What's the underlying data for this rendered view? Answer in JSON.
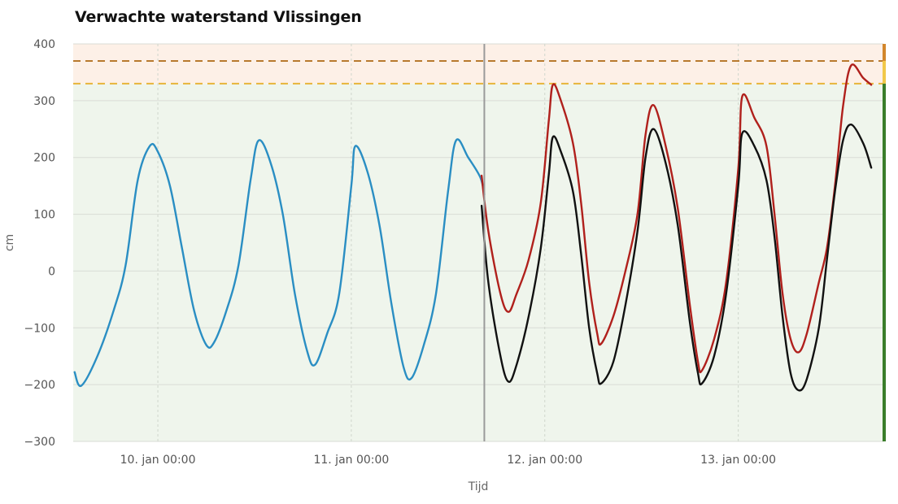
{
  "chart_data": {
    "type": "line",
    "title": "Verwachte waterstand Vlissingen",
    "xlabel": "Tijd",
    "ylabel": "cm",
    "ylim": [
      -300,
      400
    ],
    "yticks": [
      400,
      300,
      200,
      100,
      0,
      -100,
      -200,
      -300
    ],
    "xlim": [
      "2022-01-09 13:30",
      "2022-01-13 18:00"
    ],
    "xticks": [
      {
        "t": "2022-01-10 00:00",
        "label": "10. jan 00:00"
      },
      {
        "t": "2022-01-11 00:00",
        "label": "11. jan 00:00"
      },
      {
        "t": "2022-01-12 00:00",
        "label": "12. jan 00:00"
      },
      {
        "t": "2022-01-13 00:00",
        "label": "13. jan 00:00"
      }
    ],
    "now": "2022-01-11 16:30",
    "grid": true,
    "legend": "none",
    "bands": [
      {
        "from": 330,
        "to": 400,
        "color": "#fdf0e7"
      },
      {
        "from": -300,
        "to": 330,
        "color": "#eff5ec"
      }
    ],
    "threshold_lines": [
      {
        "value": 370,
        "color": "#b87a2e"
      },
      {
        "value": 330,
        "color": "#e8b53a"
      }
    ],
    "right_status_bar": [
      {
        "from": 370,
        "to": 400,
        "color": "#d2862b"
      },
      {
        "from": 330,
        "to": 370,
        "color": "#f1c84a"
      },
      {
        "from": -300,
        "to": 330,
        "color": "#3a7d2a"
      }
    ],
    "series": [
      {
        "color": "#2a8ec3",
        "points": [
          [
            "2022-01-09 13:40",
            -178
          ],
          [
            "2022-01-09 14:30",
            -202
          ],
          [
            "2022-01-09 16:30",
            -150
          ],
          [
            "2022-01-09 18:30",
            -70
          ],
          [
            "2022-01-09 20:00",
            10
          ],
          [
            "2022-01-09 21:30",
            160
          ],
          [
            "2022-01-09 23:00",
            220
          ],
          [
            "2022-01-10 00:00",
            210
          ],
          [
            "2022-01-10 01:30",
            150
          ],
          [
            "2022-01-10 03:00",
            40
          ],
          [
            "2022-01-10 04:30",
            -70
          ],
          [
            "2022-01-10 06:00",
            -130
          ],
          [
            "2022-01-10 07:00",
            -125
          ],
          [
            "2022-01-10 08:30",
            -70
          ],
          [
            "2022-01-10 10:00",
            10
          ],
          [
            "2022-01-10 11:30",
            160
          ],
          [
            "2022-01-10 12:30",
            230
          ],
          [
            "2022-01-10 14:00",
            190
          ],
          [
            "2022-01-10 15:30",
            100
          ],
          [
            "2022-01-10 17:00",
            -40
          ],
          [
            "2022-01-10 18:30",
            -140
          ],
          [
            "2022-01-10 19:30",
            -165
          ],
          [
            "2022-01-10 21:00",
            -110
          ],
          [
            "2022-01-10 22:30",
            -40
          ],
          [
            "2022-01-11 00:00",
            150
          ],
          [
            "2022-01-11 00:30",
            220
          ],
          [
            "2022-01-11 02:00",
            175
          ],
          [
            "2022-01-11 03:30",
            80
          ],
          [
            "2022-01-11 05:00",
            -60
          ],
          [
            "2022-01-11 06:30",
            -170
          ],
          [
            "2022-01-11 07:30",
            -188
          ],
          [
            "2022-01-11 09:00",
            -130
          ],
          [
            "2022-01-11 10:30",
            -40
          ],
          [
            "2022-01-11 12:00",
            140
          ],
          [
            "2022-01-11 13:00",
            230
          ],
          [
            "2022-01-11 14:30",
            200
          ],
          [
            "2022-01-11 16:00",
            165
          ],
          [
            "2022-01-11 16:30",
            135
          ]
        ]
      },
      {
        "color": "#b0201c",
        "points": [
          [
            "2022-01-11 16:10",
            168
          ],
          [
            "2022-01-11 17:00",
            70
          ],
          [
            "2022-01-11 18:30",
            -40
          ],
          [
            "2022-01-11 19:30",
            -72
          ],
          [
            "2022-01-11 20:30",
            -40
          ],
          [
            "2022-01-11 22:00",
            20
          ],
          [
            "2022-01-11 23:30",
            120
          ],
          [
            "2022-01-12 00:30",
            265
          ],
          [
            "2022-01-12 01:00",
            328
          ],
          [
            "2022-01-12 02:00",
            300
          ],
          [
            "2022-01-12 03:30",
            225
          ],
          [
            "2022-01-12 04:30",
            120
          ],
          [
            "2022-01-12 05:30",
            -20
          ],
          [
            "2022-01-12 06:30",
            -110
          ],
          [
            "2022-01-12 07:00",
            -128
          ],
          [
            "2022-01-12 08:30",
            -80
          ],
          [
            "2022-01-12 10:00",
            0
          ],
          [
            "2022-01-12 11:30",
            100
          ],
          [
            "2022-01-12 12:30",
            240
          ],
          [
            "2022-01-12 13:30",
            292
          ],
          [
            "2022-01-12 15:00",
            220
          ],
          [
            "2022-01-12 16:30",
            110
          ],
          [
            "2022-01-12 18:00",
            -60
          ],
          [
            "2022-01-12 19:00",
            -160
          ],
          [
            "2022-01-12 19:30",
            -175
          ],
          [
            "2022-01-12 21:00",
            -120
          ],
          [
            "2022-01-12 22:30",
            -20
          ],
          [
            "2022-01-13 00:00",
            180
          ],
          [
            "2022-01-13 00:30",
            308
          ],
          [
            "2022-01-13 02:00",
            270
          ],
          [
            "2022-01-13 03:30",
            220
          ],
          [
            "2022-01-13 04:30",
            100
          ],
          [
            "2022-01-13 05:30",
            -40
          ],
          [
            "2022-01-13 06:30",
            -120
          ],
          [
            "2022-01-13 07:30",
            -143
          ],
          [
            "2022-01-13 08:30",
            -110
          ],
          [
            "2022-01-13 10:00",
            -20
          ],
          [
            "2022-01-13 11:00",
            40
          ],
          [
            "2022-01-13 12:00",
            150
          ],
          [
            "2022-01-13 13:00",
            290
          ],
          [
            "2022-01-13 14:00",
            362
          ],
          [
            "2022-01-13 15:30",
            340
          ],
          [
            "2022-01-13 16:30",
            328
          ]
        ]
      },
      {
        "color": "#111111",
        "points": [
          [
            "2022-01-11 16:10",
            115
          ],
          [
            "2022-01-11 17:00",
            -20
          ],
          [
            "2022-01-11 18:30",
            -150
          ],
          [
            "2022-01-11 19:30",
            -195
          ],
          [
            "2022-01-11 20:30",
            -165
          ],
          [
            "2022-01-11 22:00",
            -80
          ],
          [
            "2022-01-11 23:30",
            40
          ],
          [
            "2022-01-12 00:30",
            170
          ],
          [
            "2022-01-12 01:00",
            236
          ],
          [
            "2022-01-12 02:00",
            210
          ],
          [
            "2022-01-12 03:30",
            140
          ],
          [
            "2022-01-12 04:30",
            30
          ],
          [
            "2022-01-12 05:30",
            -100
          ],
          [
            "2022-01-12 06:30",
            -180
          ],
          [
            "2022-01-12 07:00",
            -198
          ],
          [
            "2022-01-12 08:30",
            -160
          ],
          [
            "2022-01-12 10:00",
            -60
          ],
          [
            "2022-01-12 11:30",
            70
          ],
          [
            "2022-01-12 12:30",
            200
          ],
          [
            "2022-01-12 13:30",
            250
          ],
          [
            "2022-01-12 15:00",
            190
          ],
          [
            "2022-01-12 16:30",
            80
          ],
          [
            "2022-01-12 18:00",
            -90
          ],
          [
            "2022-01-12 19:00",
            -180
          ],
          [
            "2022-01-12 19:30",
            -198
          ],
          [
            "2022-01-12 21:00",
            -150
          ],
          [
            "2022-01-12 22:30",
            -40
          ],
          [
            "2022-01-13 00:00",
            150
          ],
          [
            "2022-01-13 00:30",
            243
          ],
          [
            "2022-01-13 02:00",
            220
          ],
          [
            "2022-01-13 03:30",
            160
          ],
          [
            "2022-01-13 04:30",
            60
          ],
          [
            "2022-01-13 05:30",
            -80
          ],
          [
            "2022-01-13 06:30",
            -180
          ],
          [
            "2022-01-13 07:30",
            -210
          ],
          [
            "2022-01-13 08:30",
            -190
          ],
          [
            "2022-01-13 10:00",
            -100
          ],
          [
            "2022-01-13 11:00",
            20
          ],
          [
            "2022-01-13 12:00",
            140
          ],
          [
            "2022-01-13 13:00",
            230
          ],
          [
            "2022-01-13 14:00",
            258
          ],
          [
            "2022-01-13 15:30",
            225
          ],
          [
            "2022-01-13 16:30",
            182
          ]
        ]
      }
    ]
  }
}
